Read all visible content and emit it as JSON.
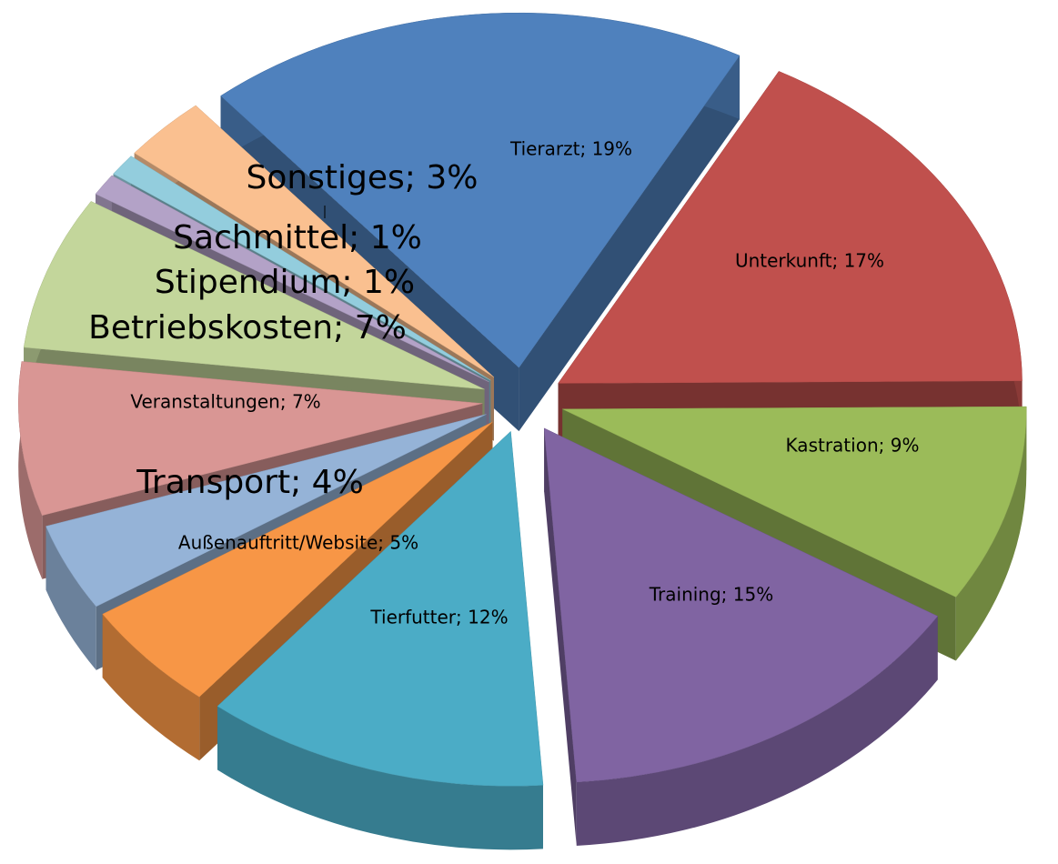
{
  "chart_data": {
    "type": "pie",
    "categories": [
      "Tierarzt",
      "Unterkunft",
      "Kastration",
      "Training",
      "Tierfutter",
      "Außenauftritt/Website",
      "Transport",
      "Veranstaltungen",
      "Betriebskosten",
      "Stipendium",
      "Sachmittel",
      "Sonstiges"
    ],
    "values": [
      19,
      17,
      9,
      15,
      12,
      5,
      4,
      7,
      7,
      1,
      1,
      3
    ],
    "value_labels": [
      "Tierarzt; 19%",
      "Unterkunft; 17%",
      "Kastration; 9%",
      "Training; 15%",
      "Tierfutter; 12%",
      "Außenauftritt/Website; 5%",
      "Transport; 4%",
      "Veranstaltungen; 7%",
      "Betriebskosten; 7%",
      "Stipendium; 1%",
      "Sachmittel; 1%",
      "Sonstiges; 3%"
    ],
    "colors": [
      "#4f81bd",
      "#c0504d",
      "#9bbb59",
      "#8064a2",
      "#4bacc6",
      "#f79646",
      "#95b3d7",
      "#d99694",
      "#c3d69b",
      "#b3a2c7",
      "#93cddd",
      "#fac090"
    ]
  }
}
